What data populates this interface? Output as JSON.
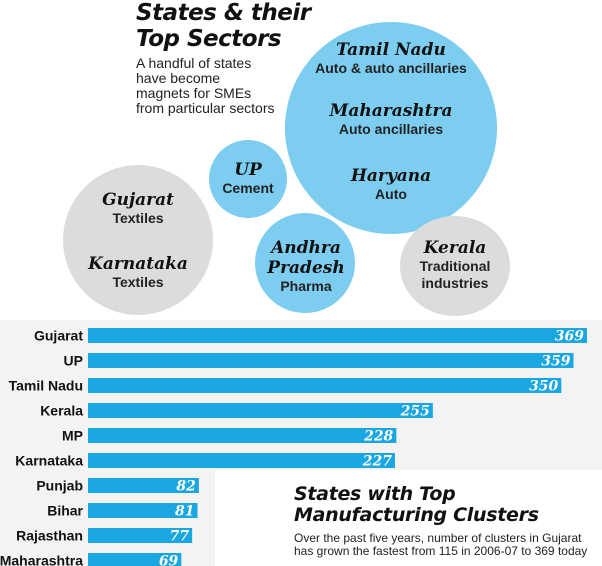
{
  "title_line1": "States & their",
  "title_line2": "Top Sectors",
  "subtitle": "A handful of states have become magnets for SMEs from particular sectors",
  "bubbles": [
    {
      "state": "Tamil Nadu",
      "sector": "Auto & auto ancillaries"
    },
    {
      "state": "Maharashtra",
      "sector": "Auto ancillaries"
    },
    {
      "state": "Haryana",
      "sector": "Auto"
    },
    {
      "state": "UP",
      "sector": "Cement"
    },
    {
      "state": "Gujarat",
      "sector": "Textiles"
    },
    {
      "state": "Karnataka",
      "sector": "Textiles"
    },
    {
      "state": "Andhra Pradesh",
      "sector": "Pharma"
    },
    {
      "state": "Kerala",
      "sector": "Traditional industries"
    }
  ],
  "colors": {
    "bar": "#1aa6e0",
    "bubble_blue": "#7ccdef",
    "bubble_gray": "#dcdcdc"
  },
  "chart_data": {
    "type": "bar",
    "orientation": "horizontal",
    "title": "States with Top Manufacturing Clusters",
    "subtitle": "Over the past five years, number of clusters in Gujarat has grown the fastest from 115 in 2006-07 to 369 today",
    "categories": [
      "Gujarat",
      "UP",
      "Tamil Nadu",
      "Kerala",
      "MP",
      "Karnataka",
      "Punjab",
      "Bihar",
      "Rajasthan",
      "Maharashtra"
    ],
    "values": [
      369,
      359,
      350,
      255,
      228,
      227,
      82,
      81,
      77,
      69
    ],
    "xlim": [
      0,
      369
    ],
    "grid": false
  }
}
